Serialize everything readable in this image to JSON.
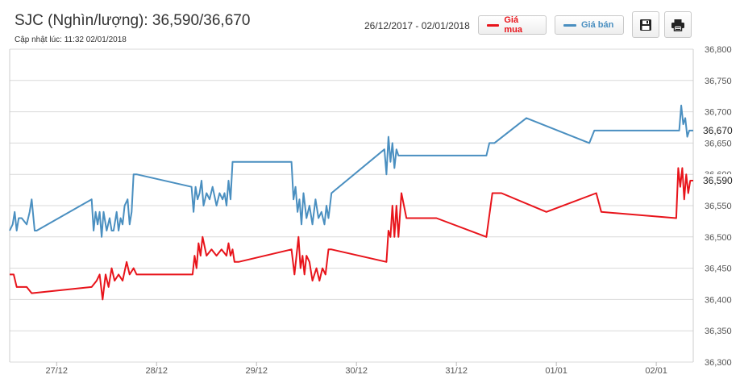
{
  "header": {
    "title": "SJC (Nghìn/lượng): 36,590/36,670",
    "updated": "Cập nhật lúc: 11:32 02/01/2018",
    "date_range": "26/12/2017 - 02/01/2018"
  },
  "toolbar": {
    "buy_label": "Giá mua",
    "sell_label": "Giá bán",
    "save_icon": "floppy-disk-icon",
    "print_icon": "printer-icon"
  },
  "colors": {
    "buy": "#e8141b",
    "sell": "#4a8fc0",
    "grid": "#d9d9d9",
    "axis_text": "#555555"
  },
  "chart_data": {
    "type": "line",
    "title": "SJC (Nghìn/lượng): 36,590/36,670",
    "xlabel": "",
    "ylabel": "",
    "ylim": [
      36300,
      36800
    ],
    "y_ticks": [
      36300,
      36350,
      36400,
      36450,
      36500,
      36550,
      36600,
      36650,
      36700,
      36750,
      36800
    ],
    "x_ticks": [
      "27/12",
      "28/12",
      "29/12",
      "30/12",
      "31/12",
      "01/01",
      "02/01"
    ],
    "x_tick_values": [
      1,
      2,
      3,
      4,
      5,
      6,
      7
    ],
    "xlim": [
      0.53,
      7.37
    ],
    "last_value_labels": [
      "36,670",
      "36,590"
    ],
    "grid": true,
    "legend": "top",
    "series": [
      {
        "name": "Giá mua",
        "color": "#e8141b",
        "x": [
          0.53,
          0.57,
          0.6,
          0.7,
          0.75,
          1.35,
          1.4,
          1.43,
          1.46,
          1.49,
          1.52,
          1.55,
          1.58,
          1.62,
          1.66,
          1.7,
          1.73,
          1.77,
          1.8,
          1.82,
          2.36,
          2.38,
          2.4,
          2.42,
          2.44,
          2.46,
          2.5,
          2.55,
          2.6,
          2.65,
          2.7,
          2.72,
          2.74,
          2.76,
          2.78,
          2.82,
          3.35,
          3.38,
          3.4,
          3.42,
          3.44,
          3.46,
          3.48,
          3.5,
          3.53,
          3.56,
          3.6,
          3.63,
          3.66,
          3.69,
          3.72,
          3.75,
          4.3,
          4.32,
          4.34,
          4.36,
          4.38,
          4.4,
          4.42,
          4.45,
          4.5,
          4.8,
          5.3,
          5.36,
          5.45,
          5.9,
          6.4,
          6.45,
          7.2,
          7.22,
          7.24,
          7.26,
          7.28,
          7.3,
          7.32,
          7.34,
          7.37
        ],
        "values": [
          36440,
          36440,
          36420,
          36420,
          36410,
          36420,
          36430,
          36440,
          36400,
          36440,
          36420,
          36450,
          36430,
          36440,
          36430,
          36460,
          36440,
          36450,
          36440,
          36440,
          36440,
          36470,
          36450,
          36490,
          36470,
          36500,
          36470,
          36480,
          36470,
          36480,
          36470,
          36490,
          36470,
          36480,
          36460,
          36460,
          36480,
          36440,
          36470,
          36500,
          36450,
          36470,
          36440,
          36470,
          36460,
          36430,
          36450,
          36430,
          36450,
          36440,
          36480,
          36480,
          36460,
          36510,
          36500,
          36550,
          36500,
          36550,
          36500,
          36570,
          36530,
          36530,
          36500,
          36570,
          36570,
          36540,
          36570,
          36540,
          36530,
          36610,
          36580,
          36610,
          36560,
          36600,
          36570,
          36590,
          36590
        ]
      },
      {
        "name": "Giá bán",
        "color": "#4a8fc0",
        "x": [
          0.53,
          0.56,
          0.58,
          0.6,
          0.62,
          0.65,
          0.7,
          0.73,
          0.75,
          0.78,
          0.8,
          1.35,
          1.37,
          1.39,
          1.41,
          1.43,
          1.45,
          1.47,
          1.5,
          1.53,
          1.55,
          1.57,
          1.6,
          1.62,
          1.64,
          1.66,
          1.68,
          1.71,
          1.73,
          1.75,
          1.77,
          1.8,
          2.35,
          2.37,
          2.39,
          2.41,
          2.43,
          2.45,
          2.47,
          2.5,
          2.53,
          2.56,
          2.6,
          2.63,
          2.66,
          2.68,
          2.7,
          2.72,
          2.74,
          2.76,
          3.35,
          3.37,
          3.39,
          3.41,
          3.43,
          3.45,
          3.47,
          3.5,
          3.53,
          3.56,
          3.59,
          3.62,
          3.65,
          3.68,
          3.7,
          3.72,
          3.75,
          4.28,
          4.3,
          4.32,
          4.34,
          4.36,
          4.38,
          4.4,
          4.42,
          4.45,
          5.3,
          5.33,
          5.38,
          5.7,
          6.33,
          6.38,
          7.23,
          7.25,
          7.27,
          7.29,
          7.31,
          7.33,
          7.35,
          7.37
        ],
        "values": [
          36510,
          36520,
          36540,
          36510,
          36530,
          36530,
          36520,
          36540,
          36560,
          36510,
          36510,
          36560,
          36510,
          36540,
          36520,
          36540,
          36500,
          36540,
          36510,
          36530,
          36510,
          36510,
          36540,
          36510,
          36530,
          36520,
          36550,
          36560,
          36520,
          36540,
          36600,
          36600,
          36580,
          36540,
          36580,
          36560,
          36570,
          36590,
          36550,
          36570,
          36560,
          36580,
          36550,
          36570,
          36560,
          36570,
          36550,
          36590,
          36560,
          36620,
          36620,
          36560,
          36580,
          36540,
          36560,
          36520,
          36570,
          36530,
          36550,
          36520,
          36560,
          36530,
          36540,
          36520,
          36550,
          36530,
          36570,
          36640,
          36600,
          36660,
          36620,
          36650,
          36610,
          36640,
          36630,
          36630,
          36630,
          36650,
          36650,
          36690,
          36650,
          36670,
          36670,
          36710,
          36680,
          36690,
          36660,
          36670,
          36670,
          36670
        ]
      }
    ]
  }
}
